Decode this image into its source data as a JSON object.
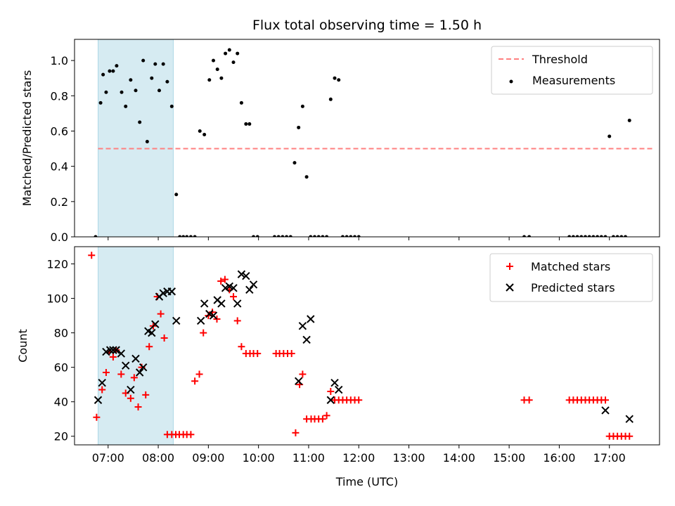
{
  "chart_data": [
    {
      "type": "scatter",
      "title": "Flux total observing time = 1.50 h",
      "xlabel": "",
      "ylabel": "Matched/Predicted stars",
      "xlim": [
        6.33,
        18.0
      ],
      "ylim": [
        0.0,
        1.12
      ],
      "yticks": [
        0.0,
        0.2,
        0.4,
        0.6,
        0.8,
        1.0
      ],
      "ytick_labels": [
        "0.0",
        "0.2",
        "0.4",
        "0.6",
        "0.8",
        "1.0"
      ],
      "xticks": [
        7,
        8,
        9,
        10,
        11,
        12,
        13,
        14,
        15,
        16,
        17
      ],
      "xtick_labels_visible": false,
      "grid": false,
      "legend_position": "upper-right",
      "shaded_region": [
        6.8,
        8.3
      ],
      "threshold": {
        "name": "Threshold",
        "value": 0.5,
        "x_range": [
          6.8,
          17.9
        ],
        "color": "#ff8080",
        "style": "dashed"
      },
      "series": [
        {
          "name": "Measurements",
          "marker": "dot",
          "color": "#000000",
          "x": [
            6.75,
            6.85,
            6.9,
            6.96,
            7.03,
            7.1,
            7.17,
            7.27,
            7.35,
            7.45,
            7.55,
            7.63,
            7.7,
            7.78,
            7.87,
            7.94,
            8.02,
            8.1,
            8.18,
            8.27,
            8.36,
            8.43,
            8.5,
            8.57,
            8.65,
            8.73,
            8.83,
            8.92,
            9.02,
            9.1,
            9.18,
            9.26,
            9.34,
            9.42,
            9.5,
            9.58,
            9.66,
            9.75,
            9.82,
            9.9,
            9.98,
            10.32,
            10.4,
            10.48,
            10.56,
            10.64,
            10.72,
            10.8,
            10.88,
            10.96,
            11.04,
            11.12,
            11.2,
            11.28,
            11.36,
            11.44,
            11.52,
            11.6,
            11.68,
            11.76,
            11.84,
            11.92,
            12.0,
            15.3,
            15.4,
            16.2,
            16.28,
            16.36,
            16.44,
            16.52,
            16.6,
            16.68,
            16.76,
            16.84,
            16.92,
            17.0,
            17.08,
            17.16,
            17.24,
            17.32,
            17.4
          ],
          "y": [
            0.0,
            0.76,
            0.92,
            0.82,
            0.94,
            0.94,
            0.97,
            0.82,
            0.74,
            0.89,
            0.83,
            0.65,
            1.0,
            0.54,
            0.9,
            0.98,
            0.83,
            0.98,
            0.88,
            0.74,
            0.24,
            0.0,
            0.0,
            0.0,
            0.0,
            0.0,
            0.6,
            0.58,
            0.89,
            1.0,
            0.95,
            0.9,
            1.04,
            1.06,
            0.99,
            1.04,
            0.76,
            0.64,
            0.64,
            0.0,
            0.0,
            0.0,
            0.0,
            0.0,
            0.0,
            0.0,
            0.42,
            0.62,
            0.74,
            0.34,
            0.0,
            0.0,
            0.0,
            0.0,
            0.0,
            0.78,
            0.9,
            0.89,
            0.0,
            0.0,
            0.0,
            0.0,
            0.0,
            0.0,
            0.0,
            0.0,
            0.0,
            0.0,
            0.0,
            0.0,
            0.0,
            0.0,
            0.0,
            0.0,
            0.0,
            0.57,
            0.0,
            0.0,
            0.0,
            0.0,
            0.66
          ]
        }
      ]
    },
    {
      "type": "scatter",
      "title": "",
      "xlabel": "Time (UTC)",
      "ylabel": "Count",
      "xlim": [
        6.33,
        18.0
      ],
      "ylim": [
        15,
        130
      ],
      "yticks": [
        20,
        40,
        60,
        80,
        100,
        120
      ],
      "ytick_labels": [
        "20",
        "40",
        "60",
        "80",
        "100",
        "120"
      ],
      "xticks": [
        7,
        8,
        9,
        10,
        11,
        12,
        13,
        14,
        15,
        16,
        17
      ],
      "xtick_labels": [
        "07:00",
        "08:00",
        "09:00",
        "10:00",
        "11:00",
        "12:00",
        "13:00",
        "14:00",
        "15:00",
        "16:00",
        "17:00"
      ],
      "grid": false,
      "legend_position": "upper-right",
      "shaded_region": [
        6.8,
        8.3
      ],
      "series": [
        {
          "name": "Matched stars",
          "marker": "plus",
          "color": "#ff0000",
          "x": [
            6.67,
            6.77,
            6.88,
            6.96,
            7.02,
            7.1,
            7.16,
            7.26,
            7.35,
            7.45,
            7.52,
            7.6,
            7.67,
            7.75,
            7.82,
            7.9,
            7.98,
            8.05,
            8.12,
            8.18,
            8.27,
            8.35,
            8.42,
            8.5,
            8.57,
            8.65,
            8.73,
            8.82,
            8.9,
            9.0,
            9.08,
            9.17,
            9.25,
            9.33,
            9.42,
            9.5,
            9.58,
            9.66,
            9.75,
            9.83,
            9.9,
            9.98,
            10.35,
            10.42,
            10.5,
            10.58,
            10.66,
            10.74,
            10.82,
            10.88,
            10.96,
            11.05,
            11.12,
            11.2,
            11.28,
            11.36,
            11.44,
            11.52,
            11.6,
            11.68,
            11.76,
            11.84,
            11.92,
            12.0,
            15.3,
            15.4,
            16.2,
            16.28,
            16.36,
            16.44,
            16.52,
            16.6,
            16.68,
            16.76,
            16.84,
            16.92,
            17.0,
            17.08,
            17.16,
            17.24,
            17.32,
            17.4
          ],
          "y": [
            125,
            31,
            47,
            57,
            69,
            66,
            70,
            56,
            45,
            42,
            54,
            37,
            60,
            44,
            72,
            84,
            101,
            91,
            77,
            21,
            21,
            21,
            21,
            21,
            21,
            21,
            52,
            56,
            80,
            90,
            92,
            88,
            110,
            111,
            105,
            101,
            87,
            72,
            68,
            68,
            68,
            68,
            68,
            68,
            68,
            68,
            68,
            22,
            50,
            56,
            30,
            30,
            30,
            30,
            30,
            32,
            46,
            41,
            41,
            41,
            41,
            41,
            41,
            41,
            41,
            41,
            41,
            41,
            41,
            41,
            41,
            41,
            41,
            41,
            41,
            41,
            20,
            20,
            20,
            20,
            20,
            20
          ]
        },
        {
          "name": "Predicted stars",
          "marker": "x",
          "color": "#000000",
          "x": [
            6.8,
            6.88,
            6.96,
            7.04,
            7.1,
            7.16,
            7.26,
            7.35,
            7.45,
            7.55,
            7.63,
            7.7,
            7.8,
            7.87,
            7.94,
            8.02,
            8.1,
            8.18,
            8.27,
            8.36,
            8.85,
            8.92,
            9.02,
            9.1,
            9.18,
            9.26,
            9.34,
            9.42,
            9.5,
            9.58,
            9.66,
            9.75,
            9.82,
            9.9,
            10.8,
            10.88,
            10.96,
            11.04,
            11.44,
            11.52,
            11.6,
            16.92,
            17.4
          ],
          "y": [
            41,
            51,
            69,
            70,
            70,
            70,
            68,
            61,
            47,
            65,
            57,
            60,
            81,
            80,
            85,
            101,
            103,
            104,
            104,
            87,
            87,
            97,
            91,
            90,
            99,
            97,
            106,
            107,
            106,
            97,
            114,
            113,
            105,
            108,
            52,
            84,
            76,
            88,
            41,
            51,
            47,
            35,
            30
          ]
        }
      ]
    }
  ]
}
